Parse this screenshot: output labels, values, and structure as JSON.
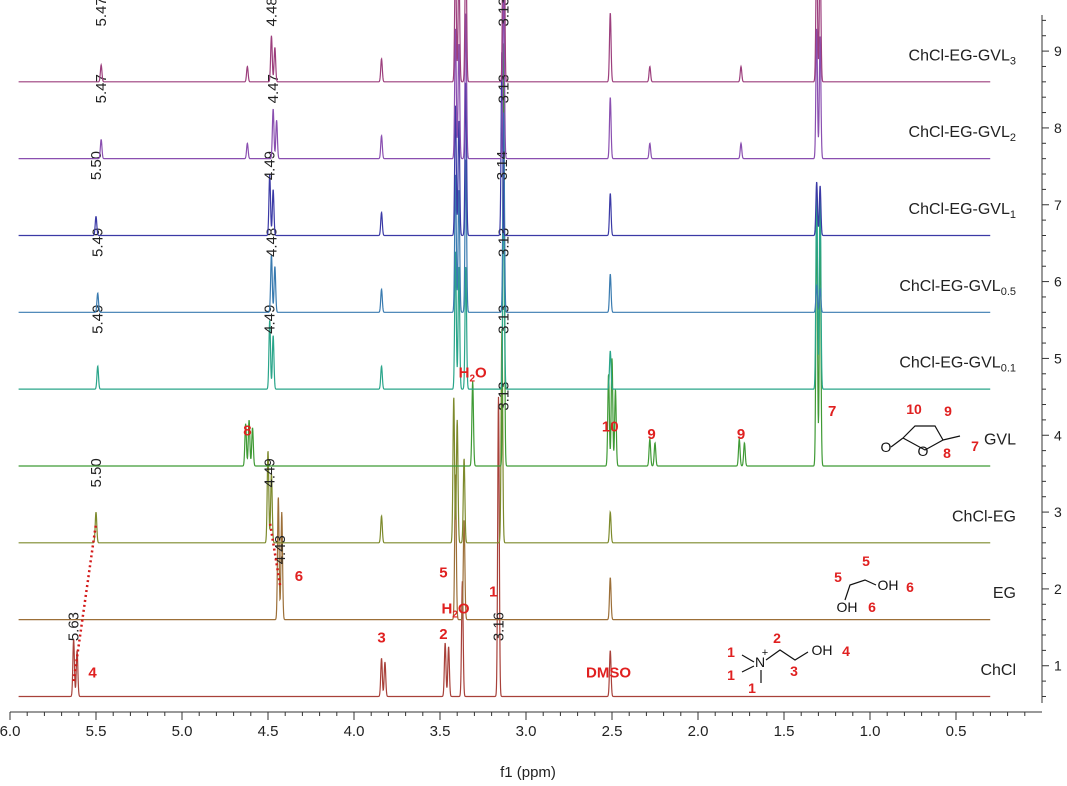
{
  "chart_data": {
    "type": "line",
    "xlabel": "f1 (ppm)",
    "xlim": [
      6.0,
      0.0
    ],
    "x_reversed": true,
    "x_ticks": [
      "6.0",
      "5.5",
      "5.0",
      "4.5",
      "4.0",
      "3.5",
      "3.0",
      "2.5",
      "2.0",
      "1.5",
      "1.0",
      "0.5"
    ],
    "x_tick_values": [
      6.0,
      5.5,
      5.0,
      4.5,
      4.0,
      3.5,
      3.0,
      2.5,
      2.0,
      1.5,
      1.0,
      0.5
    ],
    "y_ticks": [
      "1",
      "2",
      "3",
      "4",
      "5",
      "6",
      "7",
      "8",
      "9"
    ],
    "y_tick_values": [
      1,
      2,
      3,
      4,
      5,
      6,
      7,
      8,
      9
    ],
    "ylim": [
      0.45,
      9.6
    ],
    "grid": false,
    "series": [
      {
        "name": "ChCl",
        "offset": 0.6,
        "color": "#a8413a",
        "peaks": [
          [
            5.63,
            0.75
          ],
          [
            5.61,
            0.6
          ],
          [
            3.84,
            0.5
          ],
          [
            3.82,
            0.45
          ],
          [
            3.47,
            0.7
          ],
          [
            3.45,
            0.65
          ],
          [
            3.37,
            1.5
          ],
          [
            3.16,
            3.9
          ],
          [
            2.51,
            0.6
          ]
        ],
        "peak_labels": [
          {
            "x": 5.63,
            "text": "5.63"
          },
          {
            "x": 3.16,
            "text": "3.16"
          }
        ]
      },
      {
        "name": "EG",
        "offset": 1.6,
        "color": "#9c6f38",
        "peaks": [
          [
            4.44,
            1.6
          ],
          [
            4.42,
            1.4
          ],
          [
            3.41,
            1.9
          ],
          [
            3.36,
            1.3
          ],
          [
            2.51,
            0.55
          ]
        ],
        "peak_labels": [
          {
            "x": 4.43,
            "text": "4.43"
          }
        ]
      },
      {
        "name": "ChCl-EG",
        "offset": 2.6,
        "color": "#7d8a2c",
        "peaks": [
          [
            5.5,
            0.4
          ],
          [
            4.5,
            1.2
          ],
          [
            4.48,
            0.9
          ],
          [
            3.84,
            0.35
          ],
          [
            3.42,
            1.9
          ],
          [
            3.4,
            1.6
          ],
          [
            3.36,
            1.1
          ],
          [
            3.14,
            2.8
          ],
          [
            2.51,
            0.4
          ]
        ],
        "peak_labels": [
          {
            "x": 5.5,
            "text": "5.50"
          },
          {
            "x": 4.49,
            "text": "4.49"
          }
        ]
      },
      {
        "name": "GVL",
        "offset": 3.6,
        "color": "#3f9a35",
        "peaks": [
          [
            4.63,
            0.55
          ],
          [
            4.61,
            0.6
          ],
          [
            4.59,
            0.5
          ],
          [
            3.31,
            1.1
          ],
          [
            3.13,
            5.5
          ],
          [
            2.52,
            1.2
          ],
          [
            2.5,
            1.4
          ],
          [
            2.48,
            1.0
          ],
          [
            2.28,
            0.35
          ],
          [
            2.25,
            0.3
          ],
          [
            1.76,
            0.35
          ],
          [
            1.73,
            0.3
          ],
          [
            1.31,
            3.4
          ],
          [
            1.29,
            3.2
          ]
        ],
        "peak_labels": [
          {
            "x": 3.13,
            "text": "3.13"
          }
        ]
      },
      {
        "name": "ChCl-EG-GVL",
        "name_sub": "0.1",
        "offset": 4.6,
        "color": "#2aa58a",
        "peaks": [
          [
            5.49,
            0.3
          ],
          [
            4.49,
            0.9
          ],
          [
            4.47,
            0.7
          ],
          [
            3.84,
            0.3
          ],
          [
            3.41,
            1.8
          ],
          [
            3.39,
            1.6
          ],
          [
            3.35,
            1.6
          ],
          [
            3.13,
            2.7
          ],
          [
            2.51,
            0.5
          ],
          [
            1.31,
            2.7
          ],
          [
            1.29,
            2.6
          ]
        ],
        "peak_labels": [
          {
            "x": 5.49,
            "text": "5.49"
          },
          {
            "x": 4.49,
            "text": "4.49"
          },
          {
            "x": 3.13,
            "text": "3.13"
          }
        ]
      },
      {
        "name": "ChCl-EG-GVL",
        "name_sub": "0.5",
        "offset": 5.6,
        "color": "#3a7bb0",
        "peaks": [
          [
            5.49,
            0.25
          ],
          [
            4.48,
            0.75
          ],
          [
            4.46,
            0.6
          ],
          [
            3.84,
            0.3
          ],
          [
            3.41,
            1.8
          ],
          [
            3.39,
            1.6
          ],
          [
            3.35,
            2.0
          ],
          [
            3.13,
            2.6
          ],
          [
            2.51,
            0.5
          ],
          [
            1.31,
            0.35
          ],
          [
            1.29,
            0.3
          ]
        ],
        "peak_labels": [
          {
            "x": 5.49,
            "text": "5.49"
          },
          {
            "x": 4.48,
            "text": "4.48"
          },
          {
            "x": 3.13,
            "text": "3.13"
          }
        ]
      },
      {
        "name": "ChCl-EG-GVL",
        "name_sub": "1",
        "offset": 6.6,
        "color": "#3b3aa6",
        "peaks": [
          [
            5.5,
            0.25
          ],
          [
            4.49,
            0.8
          ],
          [
            4.47,
            0.6
          ],
          [
            3.84,
            0.3
          ],
          [
            3.41,
            1.7
          ],
          [
            3.39,
            1.5
          ],
          [
            3.35,
            2.0
          ],
          [
            3.14,
            2.4
          ],
          [
            2.51,
            0.55
          ],
          [
            1.31,
            0.7
          ],
          [
            1.29,
            0.65
          ]
        ],
        "peak_labels": [
          {
            "x": 5.5,
            "text": "5.50"
          },
          {
            "x": 4.49,
            "text": "4.49"
          },
          {
            "x": 3.14,
            "text": "3.14"
          }
        ]
      },
      {
        "name": "ChCl-EG-GVL",
        "name_sub": "2",
        "offset": 7.6,
        "color": "#8a4fb0",
        "peaks": [
          [
            5.47,
            0.25
          ],
          [
            4.62,
            0.2
          ],
          [
            4.47,
            0.65
          ],
          [
            4.45,
            0.5
          ],
          [
            3.84,
            0.3
          ],
          [
            3.41,
            1.7
          ],
          [
            3.39,
            1.5
          ],
          [
            3.35,
            1.9
          ],
          [
            3.13,
            2.3
          ],
          [
            2.51,
            0.8
          ],
          [
            2.28,
            0.2
          ],
          [
            1.75,
            0.2
          ],
          [
            1.31,
            1.7
          ],
          [
            1.29,
            1.6
          ]
        ],
        "peak_labels": [
          {
            "x": 5.47,
            "text": "5.47"
          },
          {
            "x": 4.47,
            "text": "4.47"
          },
          {
            "x": 3.13,
            "text": "3.13"
          }
        ]
      },
      {
        "name": "ChCl-EG-GVL",
        "name_sub": "3",
        "offset": 8.6,
        "color": "#9c3f7d",
        "peaks": [
          [
            5.47,
            0.22
          ],
          [
            4.62,
            0.2
          ],
          [
            4.48,
            0.6
          ],
          [
            4.46,
            0.45
          ],
          [
            3.84,
            0.3
          ],
          [
            3.41,
            1.7
          ],
          [
            3.39,
            1.5
          ],
          [
            3.35,
            1.9
          ],
          [
            3.13,
            5.0
          ],
          [
            2.51,
            0.9
          ],
          [
            2.28,
            0.2
          ],
          [
            1.75,
            0.2
          ],
          [
            1.31,
            1.8
          ],
          [
            1.29,
            1.7
          ]
        ],
        "peak_labels": [
          {
            "x": 5.47,
            "text": "5.47"
          },
          {
            "x": 4.48,
            "text": "4.48"
          },
          {
            "x": 3.13,
            "text": "3.13"
          }
        ]
      }
    ],
    "assignments": [
      {
        "x": 5.52,
        "y": 0.85,
        "text": "4"
      },
      {
        "x": 3.84,
        "y": 1.3,
        "text": "3"
      },
      {
        "x": 3.48,
        "y": 1.35,
        "text": "2"
      },
      {
        "x": 3.19,
        "y": 1.9,
        "text": "1"
      },
      {
        "x": 2.52,
        "y": 0.85,
        "text": "DMSO"
      },
      {
        "x": 3.41,
        "y": 1.68,
        "text": "H",
        "sub": "2",
        "tail": "O"
      },
      {
        "x": 4.32,
        "y": 2.1,
        "text": "6"
      },
      {
        "x": 3.48,
        "y": 2.15,
        "text": "5"
      },
      {
        "x": 4.62,
        "y": 4.0,
        "text": "8"
      },
      {
        "x": 3.31,
        "y": 4.75,
        "text": "H",
        "sub": "2",
        "tail": "O"
      },
      {
        "x": 2.51,
        "y": 4.05,
        "text": "10"
      },
      {
        "x": 2.27,
        "y": 3.95,
        "text": "9"
      },
      {
        "x": 1.75,
        "y": 3.95,
        "text": "9"
      },
      {
        "x": 1.22,
        "y": 4.25,
        "text": "7"
      }
    ],
    "correlation_lines": [
      {
        "from": [
          5.63,
          0.8
        ],
        "to": [
          5.5,
          2.85
        ]
      },
      {
        "from": [
          4.43,
          2.05
        ],
        "to": [
          4.49,
          2.88
        ]
      }
    ],
    "structures": {
      "ChCl": {
        "labels": [
          "1",
          "1",
          "1",
          "2",
          "3",
          "4"
        ],
        "cation": "+",
        "atoms": [
          "N",
          "OH"
        ]
      },
      "EG": {
        "labels": [
          "5",
          "5",
          "6",
          "6"
        ],
        "atoms": [
          "OH",
          "OH"
        ]
      },
      "GVL": {
        "labels": [
          "10",
          "9",
          "7",
          "8"
        ],
        "atoms": [
          "O",
          "O"
        ]
      }
    }
  }
}
